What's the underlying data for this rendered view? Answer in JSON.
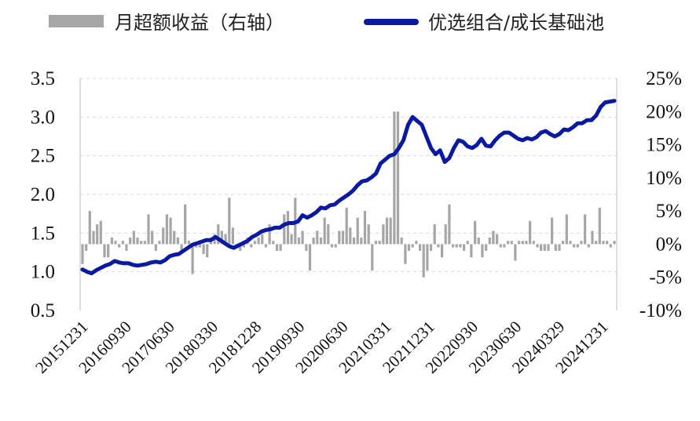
{
  "chart_data": {
    "type": "bar+line",
    "legend": [
      {
        "name": "月超额收益（右轴）",
        "color": "#a6a6a6",
        "kind": "bar"
      },
      {
        "name": "优选组合/成长基础池",
        "color": "#0a1aa0",
        "kind": "line"
      }
    ],
    "left_axis": {
      "ticks": [
        "0.5",
        "1.0",
        "1.5",
        "2.0",
        "2.5",
        "3.0",
        "3.5"
      ],
      "min": 0.5,
      "max": 3.5
    },
    "right_axis": {
      "ticks": [
        "-10%",
        "-5%",
        "0%",
        "5%",
        "10%",
        "15%",
        "20%",
        "25%"
      ],
      "min": -10,
      "max": 25
    },
    "x_ticks": [
      "20151231",
      "20160930",
      "20170630",
      "20180330",
      "20181228",
      "20190930",
      "20200630",
      "20210331",
      "20211231",
      "20220930",
      "20230630",
      "20240329",
      "20241231"
    ],
    "bar_values": [
      -3,
      -1,
      5,
      2,
      3,
      3.5,
      -2,
      -2,
      1,
      0.5,
      -0.5,
      0.5,
      -1,
      1,
      2,
      1,
      0.5,
      0.5,
      4.5,
      2,
      -1,
      0.5,
      2.5,
      4.5,
      4,
      2,
      1,
      -1,
      6,
      0.5,
      -4.5,
      -0.5,
      -0.5,
      -1.5,
      -2,
      1,
      1.5,
      3,
      2,
      1.5,
      7,
      2.5,
      -0.5,
      -1,
      -0.5,
      1,
      -0.5,
      0.5,
      1,
      1.5,
      -0.5,
      3,
      0.5,
      -1,
      -1,
      4.5,
      5,
      1.5,
      7,
      1,
      2,
      -1,
      -4,
      1,
      2,
      1,
      4,
      3,
      -0.5,
      -0.5,
      2,
      2,
      5.5,
      2.5,
      1,
      4,
      1,
      5,
      3,
      -4,
      0.5,
      0.5,
      3,
      4,
      4,
      20,
      20,
      1,
      -3,
      -1,
      -0.5,
      0.5,
      -1,
      -5,
      -4,
      -1,
      3,
      -0.5,
      -2,
      3,
      6,
      -0.5,
      -0.5,
      -0.5,
      -1,
      0.5,
      -2,
      3.5,
      1,
      -2,
      -1,
      1,
      2,
      1.5,
      -0.5,
      -0.5,
      0.5,
      0.5,
      -2.5,
      0.5,
      0.5,
      0.5,
      3.5,
      0.5,
      -0.5,
      -1,
      -1,
      -1,
      4,
      -1,
      -1,
      0.5,
      4.5,
      0.5,
      -0.5,
      -0.5,
      0.5,
      4.5,
      -0.5,
      2,
      0.5,
      5.5,
      0.5,
      0.5,
      -0.5,
      0.5
    ],
    "line_values": [
      1.03,
      1.0,
      0.98,
      1.02,
      1.05,
      1.08,
      1.1,
      1.14,
      1.12,
      1.11,
      1.11,
      1.09,
      1.08,
      1.09,
      1.1,
      1.12,
      1.13,
      1.12,
      1.15,
      1.2,
      1.22,
      1.23,
      1.27,
      1.31,
      1.35,
      1.37,
      1.39,
      1.41,
      1.41,
      1.45,
      1.41,
      1.37,
      1.33,
      1.31,
      1.34,
      1.37,
      1.4,
      1.45,
      1.48,
      1.52,
      1.54,
      1.55,
      1.57,
      1.57,
      1.61,
      1.63,
      1.63,
      1.65,
      1.73,
      1.7,
      1.73,
      1.77,
      1.83,
      1.82,
      1.86,
      1.87,
      1.92,
      1.96,
      2.0,
      2.05,
      2.12,
      2.17,
      2.18,
      2.22,
      2.27,
      2.4,
      2.45,
      2.5,
      2.52,
      2.6,
      2.7,
      2.9,
      3.0,
      2.95,
      2.9,
      2.75,
      2.6,
      2.52,
      2.57,
      2.42,
      2.47,
      2.6,
      2.7,
      2.68,
      2.62,
      2.6,
      2.64,
      2.72,
      2.63,
      2.62,
      2.7,
      2.76,
      2.8,
      2.8,
      2.76,
      2.72,
      2.7,
      2.73,
      2.71,
      2.74,
      2.8,
      2.82,
      2.78,
      2.75,
      2.78,
      2.84,
      2.83,
      2.87,
      2.92,
      2.92,
      2.96,
      2.96,
      3.02,
      3.13,
      3.19,
      3.2,
      3.21
    ]
  }
}
